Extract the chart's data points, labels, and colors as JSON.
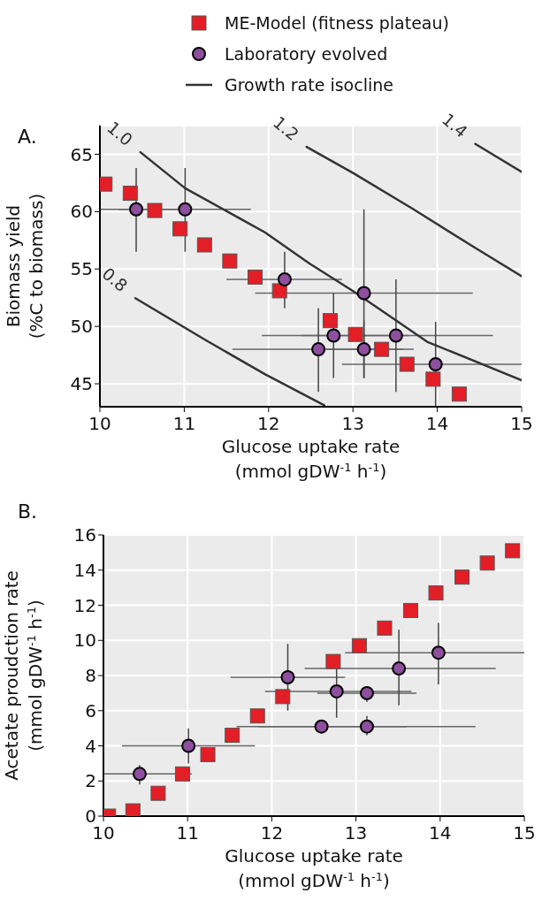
{
  "chart_data": [
    {
      "type": "scatter",
      "title": "A.",
      "xlabel": "Glucose uptake rate\n(mmol gDW$^{-1}$ h$^{-1}$)",
      "ylabel": "Biomass yield\n(%C to biomass)",
      "xlim": [
        10,
        15
      ],
      "xticks": [
        10,
        11,
        12,
        13,
        14,
        15
      ],
      "ylim": [
        43,
        67.5
      ],
      "yticks": [
        45,
        50,
        55,
        60,
        65
      ],
      "grid": true,
      "legend": "top",
      "series": [
        {
          "name": "Growth rate isocline",
          "type": "line",
          "color": "#333333",
          "x": [
            10.48,
            11.01,
            11.96,
            12.48,
            13.01,
            13.88,
            15
          ],
          "values": [
            65.18,
            62.04,
            58.18,
            55.5,
            53.03,
            48.66,
            45.3
          ]
        },
        {
          "type": "line",
          "color": "#333333",
          "x": [
            10.42,
            11.26,
            11.96,
            12.66
          ],
          "values": [
            52.46,
            48.78,
            45.82,
            43.12
          ]
        },
        {
          "type": "line",
          "color": "#333333",
          "x": [
            12.45,
            13.01,
            13.71,
            14.41,
            15
          ],
          "values": [
            65.64,
            63.33,
            60.24,
            57.02,
            54.37
          ]
        },
        {
          "type": "line",
          "color": "#333333",
          "x": [
            14.45,
            15
          ],
          "values": [
            65.9,
            63.46
          ]
        },
        {
          "name": "ME-Model (fitness plateau)",
          "type": "scatter",
          "marker": "square",
          "color": "#e41e26",
          "x": [
            10.06,
            10.36,
            10.65,
            10.95,
            11.24,
            11.54,
            11.84,
            12.13,
            12.73,
            13.03,
            13.34,
            13.64,
            13.95,
            14.26
          ],
          "values": [
            62.4,
            61.6,
            60.1,
            58.5,
            57.1,
            55.7,
            54.3,
            53.1,
            50.5,
            49.3,
            48,
            46.7,
            45.4,
            44.1
          ]
        },
        {
          "name": "Laboratory evolved",
          "type": "scatter",
          "marker": "circle",
          "color": "#8e4f9f",
          "x": [
            10.43,
            11.01,
            12.19,
            13.13,
            12.59,
            13.13,
            12.77,
            13.51,
            13.98
          ],
          "values": [
            60.2,
            60.2,
            54.1,
            52.9,
            48,
            48,
            49.2,
            49.2,
            46.7
          ],
          "errors": [
            [
              56.5,
              63.8
            ],
            [
              56.5,
              63.8
            ],
            [
              51.6,
              56.5
            ],
            [
              45.5,
              60.2
            ],
            [
              44.3,
              51.6
            ],
            [
              45.5,
              50.5
            ],
            [
              45.5,
              52.9
            ],
            [
              44.3,
              54.1
            ],
            [
              43,
              50.4
            ]
          ],
          "xerrors": [
            [
              10,
              11.05
            ],
            [
              10.22,
              11.79
            ],
            [
              11.5,
              12.87
            ],
            [
              11.84,
              14.42
            ],
            [
              11.57,
              13.6
            ],
            [
              12.57,
              13.72
            ],
            [
              11.92,
              13.66
            ],
            [
              12.39,
              14.66
            ],
            [
              12.87,
              15
            ]
          ]
        }
      ],
      "annotations": [
        "1.0",
        "0.8",
        "1.2",
        "1.4"
      ]
    },
    {
      "type": "scatter",
      "title": "B.",
      "xlabel": "Glucose uptake rate\n(mmol gDW$^{-1}$ h$^{-1}$)",
      "ylabel": "Acetate proudction rate\n(mmol gDW$^{-1}$ h$^{-1}$)",
      "xlim": [
        10,
        15
      ],
      "xticks": [
        10,
        11,
        12,
        13,
        14,
        15
      ],
      "ylim": [
        0,
        16
      ],
      "yticks": [
        0,
        2,
        4,
        6,
        8,
        10,
        12,
        14,
        16
      ],
      "grid": true,
      "series": [
        {
          "type": "scatter",
          "marker": "square",
          "color": "#e41e26",
          "x": [
            10.06,
            10.35,
            10.65,
            10.94,
            11.24,
            11.53,
            11.83,
            12.13,
            12.73,
            13.04,
            13.34,
            13.65,
            13.95,
            14.26,
            14.56,
            14.86
          ],
          "values": [
            0,
            0.3,
            1.3,
            2.4,
            3.5,
            4.6,
            5.7,
            6.8,
            8.8,
            9.7,
            10.7,
            11.7,
            12.7,
            13.6,
            14.4,
            15.1
          ]
        },
        {
          "type": "scatter",
          "marker": "circle",
          "color": "#8e4f9f",
          "x": [
            10.43,
            11.01,
            12.19,
            12.77,
            13.13,
            12.59,
            13.13,
            13.51,
            13.98
          ],
          "values": [
            2.4,
            4,
            7.9,
            7.1,
            7,
            5.1,
            5.1,
            8.4,
            9.3
          ],
          "errors": [
            [
              1.8,
              2.9
            ],
            [
              3,
              5
            ],
            [
              6,
              9.8
            ],
            [
              5.6,
              8.5
            ],
            [
              6.5,
              7.4
            ],
            [
              4.7,
              5.4
            ],
            [
              4.6,
              5.7
            ],
            [
              6.3,
              10.6
            ],
            [
              7.5,
              11
            ]
          ],
          "xerrors": [
            [
              10,
              11.05
            ],
            [
              10.22,
              11.8
            ],
            [
              11.51,
              12.87
            ],
            [
              11.92,
              13.66
            ],
            [
              12.54,
              13.72
            ],
            [
              11.58,
              13.6
            ],
            [
              11.84,
              14.42
            ],
            [
              12.39,
              14.66
            ],
            [
              12.87,
              15
            ]
          ]
        }
      ]
    }
  ]
}
